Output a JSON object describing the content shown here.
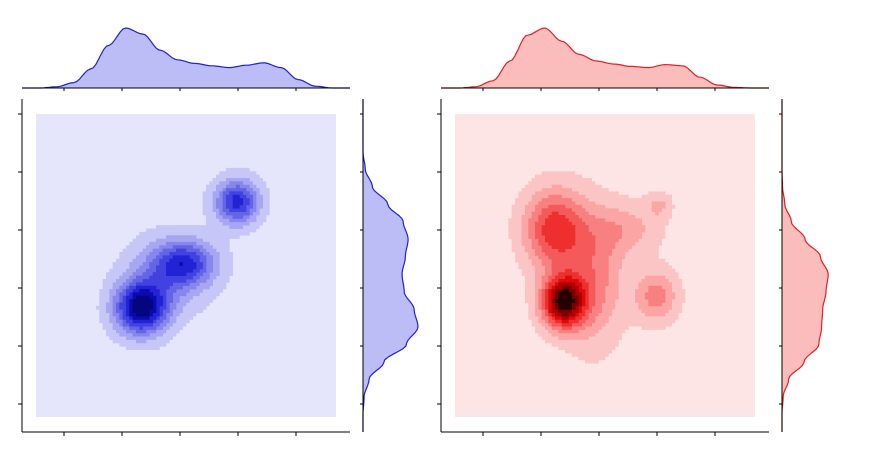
{
  "figure": {
    "background": "#ffffff",
    "axis_color": "#000000"
  },
  "chart_data": [
    {
      "type": "heatmap",
      "subtype": "kde-jointplot",
      "title": "",
      "xlabel": "",
      "ylabel": "",
      "xlim": [
        0,
        1
      ],
      "ylim": [
        0,
        1
      ],
      "grid": false,
      "colormap": "Blues",
      "colors": {
        "background_level": "#e5e5fc",
        "levels": [
          "#e5e5fc",
          "#c6c6f7",
          "#a6a6f2",
          "#8686ec",
          "#6464e6",
          "#4242e0",
          "#2323d6",
          "#0a0aae",
          "#050580"
        ],
        "marginal_fill": "#bcbcf7",
        "marginal_line": "#2020d8"
      },
      "peaks": [
        {
          "x": 0.35,
          "y": 0.36,
          "sx": 0.06,
          "sy": 0.06,
          "weight": 1.0
        },
        {
          "x": 0.5,
          "y": 0.51,
          "sx": 0.07,
          "sy": 0.05,
          "weight": 0.55
        },
        {
          "x": 0.67,
          "y": 0.71,
          "sx": 0.05,
          "sy": 0.05,
          "weight": 0.75
        },
        {
          "x": 0.44,
          "y": 0.47,
          "sx": 0.09,
          "sy": 0.08,
          "weight": 0.35
        }
      ],
      "marginal_x": [
        0.0,
        0.0,
        0.02,
        0.09,
        0.32,
        0.71,
        1.0,
        0.9,
        0.63,
        0.47,
        0.41,
        0.37,
        0.34,
        0.38,
        0.42,
        0.34,
        0.14,
        0.03,
        0.0,
        0.0
      ],
      "marginal_y": [
        0.0,
        0.0,
        0.02,
        0.11,
        0.38,
        0.79,
        1.0,
        0.93,
        0.75,
        0.71,
        0.77,
        0.82,
        0.73,
        0.45,
        0.17,
        0.04,
        0.0,
        0.0,
        0.0,
        0.0
      ]
    },
    {
      "type": "heatmap",
      "subtype": "kde-jointplot",
      "title": "",
      "xlabel": "",
      "ylabel": "",
      "xlim": [
        0,
        1
      ],
      "ylim": [
        0,
        1
      ],
      "grid": false,
      "colormap": "Reds",
      "colors": {
        "background_level": "#fde5e5",
        "levels": [
          "#fde5e5",
          "#fcc5c5",
          "#fba5a5",
          "#f88080",
          "#f55a5a",
          "#ef2e2e",
          "#dc0a0a",
          "#b00000",
          "#7a0000",
          "#240000"
        ],
        "marginal_fill": "#fbbcbc",
        "marginal_line": "#e02020"
      },
      "peaks": [
        {
          "x": 0.36,
          "y": 0.38,
          "sx": 0.05,
          "sy": 0.06,
          "weight": 1.0
        },
        {
          "x": 0.33,
          "y": 0.62,
          "sx": 0.07,
          "sy": 0.09,
          "weight": 0.6
        },
        {
          "x": 0.46,
          "y": 0.46,
          "sx": 0.07,
          "sy": 0.15,
          "weight": 0.35
        },
        {
          "x": 0.67,
          "y": 0.4,
          "sx": 0.05,
          "sy": 0.06,
          "weight": 0.35
        },
        {
          "x": 0.57,
          "y": 0.62,
          "sx": 0.08,
          "sy": 0.06,
          "weight": 0.22
        },
        {
          "x": 0.68,
          "y": 0.7,
          "sx": 0.03,
          "sy": 0.03,
          "weight": 0.18
        }
      ],
      "marginal_x": [
        0.0,
        0.0,
        0.02,
        0.12,
        0.45,
        0.88,
        1.0,
        0.78,
        0.56,
        0.45,
        0.4,
        0.36,
        0.34,
        0.39,
        0.37,
        0.18,
        0.05,
        0.01,
        0.0,
        0.0
      ],
      "marginal_y": [
        0.0,
        0.0,
        0.02,
        0.12,
        0.4,
        0.67,
        0.72,
        0.74,
        0.8,
        0.84,
        0.7,
        0.42,
        0.17,
        0.05,
        0.01,
        0.0,
        0.0,
        0.0,
        0.0,
        0.0
      ]
    }
  ]
}
